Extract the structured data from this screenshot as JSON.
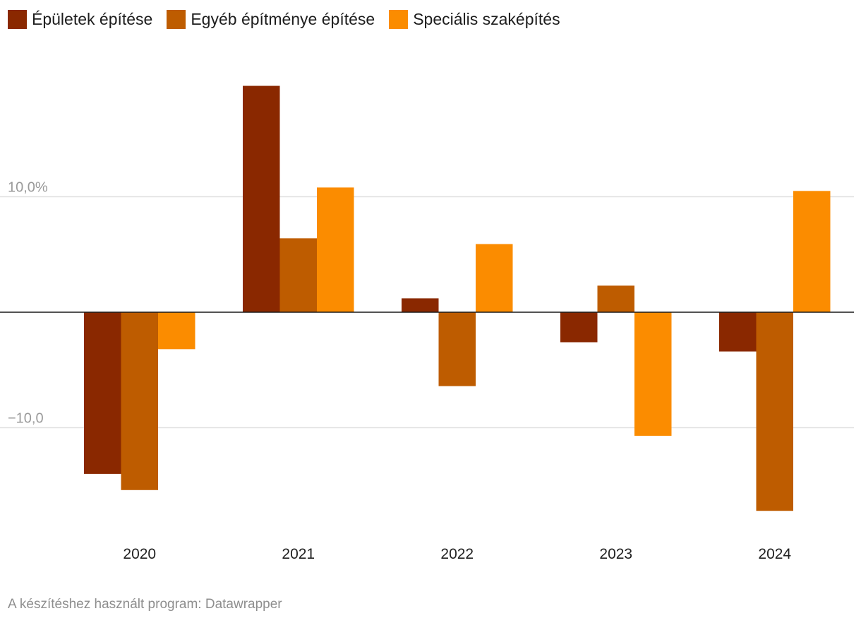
{
  "chart_data": {
    "type": "bar",
    "title": "",
    "xlabel": "",
    "ylabel": "",
    "categories": [
      "2020",
      "2021",
      "2022",
      "2023",
      "2024"
    ],
    "series": [
      {
        "name": "Épületek építése",
        "color": "#8a2800",
        "values": [
          -14.0,
          19.6,
          1.2,
          -2.6,
          -3.4
        ]
      },
      {
        "name": "Egyéb építménye építése",
        "color": "#be5c00",
        "values": [
          -15.4,
          6.4,
          -6.4,
          2.3,
          -17.2
        ]
      },
      {
        "name": "Speciális szaképítés",
        "color": "#fb8c00",
        "values": [
          -3.2,
          10.8,
          5.9,
          -10.7,
          10.5
        ]
      }
    ],
    "yticks": [
      {
        "value": 10,
        "label": "10,0%"
      },
      {
        "value": -10,
        "label": "−10,0"
      }
    ],
    "ylim": [
      -19.5,
      22
    ],
    "grid": true,
    "legend_position": "top-left"
  },
  "footer": {
    "credit": "A készítéshez használt program: Datawrapper"
  }
}
